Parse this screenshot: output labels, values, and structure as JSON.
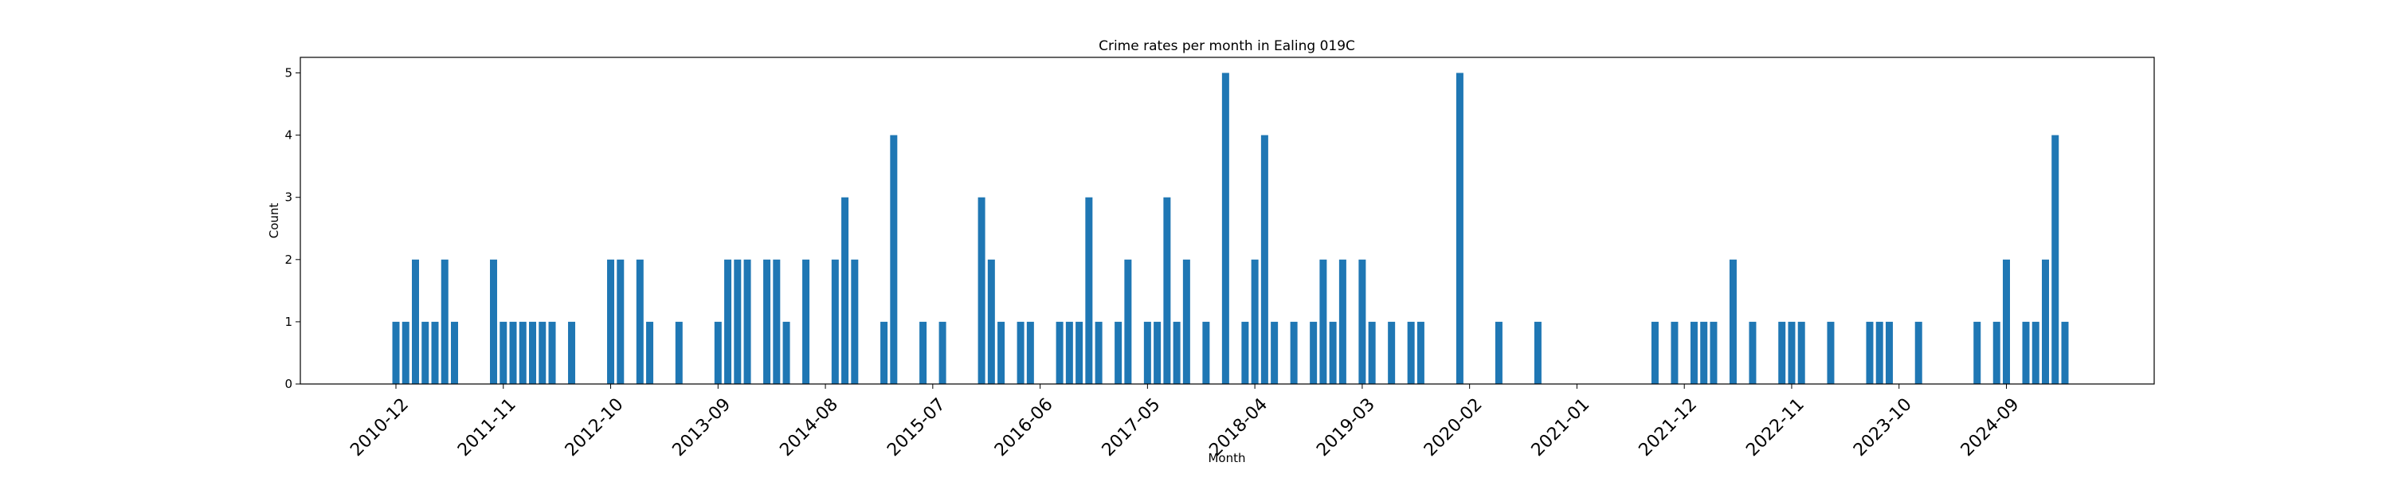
{
  "chart_data": {
    "type": "bar",
    "title": "Crime rates per month in Ealing 019C",
    "xlabel": "Month",
    "ylabel": "Count",
    "ylim": [
      0,
      5.25
    ],
    "yticks": [
      0,
      1,
      2,
      3,
      4,
      5
    ],
    "xticks": [
      "2010-12",
      "2011-11",
      "2012-10",
      "2013-09",
      "2014-08",
      "2015-07",
      "2016-06",
      "2017-05",
      "2018-04",
      "2019-03",
      "2020-02",
      "2021-01",
      "2021-12",
      "2022-11",
      "2023-10",
      "2024-09"
    ],
    "grid": false,
    "color": "#1f77b4",
    "x": [
      "2010-12",
      "2011-01",
      "2011-02",
      "2011-03",
      "2011-04",
      "2011-05",
      "2011-06",
      "2011-10",
      "2011-11",
      "2011-12",
      "2012-01",
      "2012-02",
      "2012-03",
      "2012-04",
      "2012-06",
      "2012-10",
      "2012-11",
      "2013-01",
      "2013-02",
      "2013-05",
      "2013-09",
      "2013-10",
      "2013-11",
      "2013-12",
      "2014-02",
      "2014-03",
      "2014-04",
      "2014-06",
      "2014-09",
      "2014-10",
      "2014-11",
      "2015-02",
      "2015-03",
      "2015-06",
      "2015-08",
      "2015-12",
      "2016-01",
      "2016-02",
      "2016-04",
      "2016-05",
      "2016-08",
      "2016-09",
      "2016-10",
      "2016-11",
      "2016-12",
      "2017-02",
      "2017-03",
      "2017-05",
      "2017-06",
      "2017-07",
      "2017-08",
      "2017-09",
      "2017-11",
      "2018-01",
      "2018-03",
      "2018-04",
      "2018-05",
      "2018-06",
      "2018-08",
      "2018-10",
      "2018-11",
      "2018-12",
      "2019-01",
      "2019-03",
      "2019-04",
      "2019-06",
      "2019-08",
      "2019-09",
      "2020-01",
      "2020-05",
      "2020-09",
      "2021-09",
      "2021-11",
      "2022-01",
      "2022-02",
      "2022-03",
      "2022-05",
      "2022-07",
      "2022-10",
      "2022-11",
      "2022-12",
      "2023-03",
      "2023-07",
      "2023-08",
      "2023-09",
      "2023-12",
      "2024-06",
      "2024-08",
      "2024-09",
      "2024-11",
      "2024-12",
      "2025-01",
      "2025-02",
      "2025-03"
    ],
    "values": [
      1,
      1,
      2,
      1,
      1,
      2,
      1,
      2,
      1,
      1,
      1,
      1,
      1,
      1,
      1,
      2,
      2,
      2,
      1,
      1,
      1,
      2,
      2,
      2,
      2,
      2,
      1,
      2,
      2,
      3,
      2,
      1,
      4,
      1,
      1,
      3,
      2,
      1,
      1,
      1,
      1,
      1,
      1,
      3,
      1,
      1,
      2,
      1,
      1,
      3,
      1,
      2,
      1,
      5,
      1,
      2,
      4,
      1,
      1,
      1,
      2,
      1,
      2,
      2,
      1,
      1,
      1,
      1,
      5,
      1,
      1,
      1,
      1,
      1,
      1,
      1,
      2,
      1,
      1,
      1,
      1,
      1,
      1,
      1,
      1,
      1,
      1,
      1,
      2,
      1,
      1,
      2,
      4,
      1
    ]
  }
}
